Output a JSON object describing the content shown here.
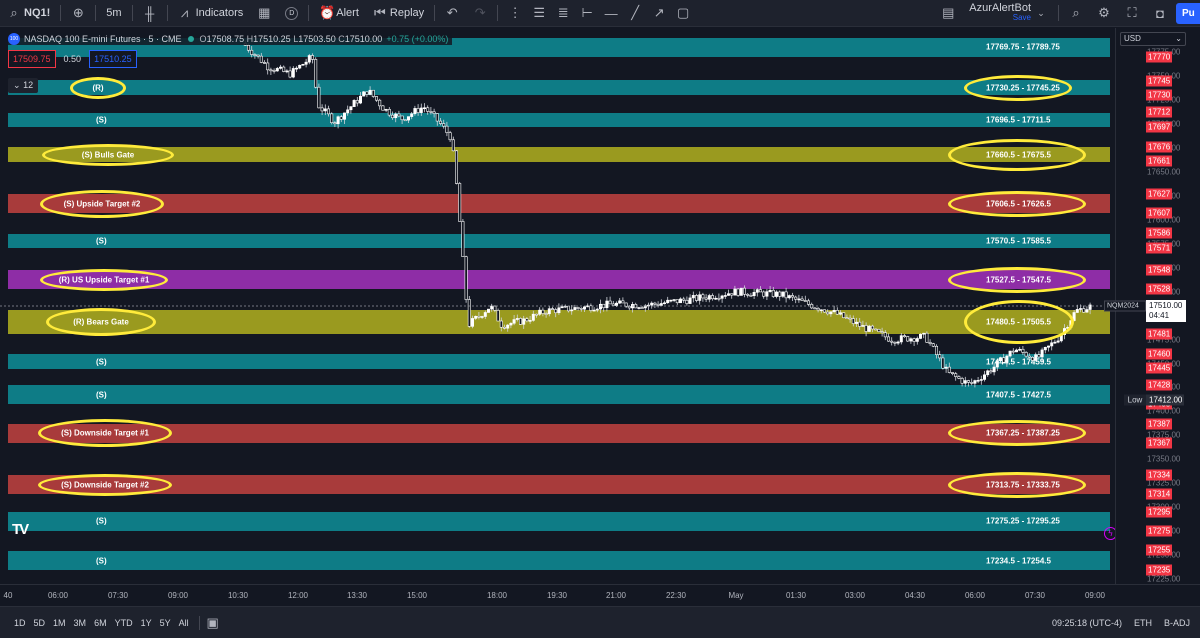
{
  "toolbar": {
    "symbol": "NQ1!",
    "interval": "5m",
    "indicators_label": "Indicators",
    "templates_badge": "D",
    "alert_label": "Alert",
    "replay_label": "Replay",
    "account_name": "AzurAlertBot",
    "save_label": "Save",
    "publish_label": "Pu"
  },
  "legend": {
    "title": "NASDAQ 100 E-mini Futures · 5 · CME",
    "open_label": "O",
    "open": "17508.75",
    "high_label": "H",
    "high": "17510.25",
    "low_label": "L",
    "low": "17503.50",
    "close_label": "C",
    "close": "17510.00",
    "change": "+0.75 (+0.00%)",
    "bid": "17509.75",
    "spread": "0.50",
    "ask": "17510.25",
    "indicator_count": "12"
  },
  "bands": [
    {
      "left": "",
      "right": "17769.75 - 17789.75",
      "color": "#0e7c86",
      "price_lo": 17769.75,
      "price_hi": 17789.75
    },
    {
      "left": "(R)",
      "right": "17730.25 - 17745.25",
      "color": "#0e7c86",
      "price_lo": 17730.25,
      "price_hi": 17745.25
    },
    {
      "left": "(S)",
      "right": "17696.5 - 17711.5",
      "color": "#0e7c86",
      "price_lo": 17696.5,
      "price_hi": 17711.5
    },
    {
      "left": "(S) Bulls Gate",
      "right": "17660.5 - 17675.5",
      "color": "#9a9a1f",
      "price_lo": 17660.5,
      "price_hi": 17675.5
    },
    {
      "left": "(S) Upside Target #2",
      "right": "17606.5 - 17626.5",
      "color": "#a83b3b",
      "price_lo": 17606.5,
      "price_hi": 17626.5
    },
    {
      "left": "(S)",
      "right": "17570.5 - 17585.5",
      "color": "#0e7c86",
      "price_lo": 17570.5,
      "price_hi": 17585.5
    },
    {
      "left": "(R) US Upside Target #1",
      "right": "17527.5 - 17547.5",
      "color": "#8e2da6",
      "price_lo": 17527.5,
      "price_hi": 17547.5
    },
    {
      "left": "(R) Bears Gate",
      "right": "17480.5 - 17505.5",
      "color": "#9a9a1f",
      "price_lo": 17480.5,
      "price_hi": 17505.5
    },
    {
      "left": "(S)",
      "right": "17444.5 - 17459.5",
      "color": "#0e7c86",
      "price_lo": 17444.5,
      "price_hi": 17459.5
    },
    {
      "left": "(S)",
      "right": "17407.5 - 17427.5",
      "color": "#0e7c86",
      "price_lo": 17407.5,
      "price_hi": 17427.5
    },
    {
      "left": "(S) Downside Target #1",
      "right": "17367.25 - 17387.25",
      "color": "#a83b3b",
      "price_lo": 17367.25,
      "price_hi": 17387.25
    },
    {
      "left": "(S) Downside Target #2",
      "right": "17313.75 - 17333.75",
      "color": "#a83b3b",
      "price_lo": 17313.75,
      "price_hi": 17333.75
    },
    {
      "left": "(S)",
      "right": "17275.25 - 17295.25",
      "color": "#0e7c86",
      "price_lo": 17275.25,
      "price_hi": 17295.25
    },
    {
      "left": "(S)",
      "right": "17234.5 - 17254.5",
      "color": "#0e7c86",
      "price_lo": 17234.5,
      "price_hi": 17254.5
    }
  ],
  "price_scale": {
    "currency": "USD",
    "ticks": [
      "17775.00",
      "17750.00",
      "17725.00",
      "17700.00",
      "17675.00",
      "17650.00",
      "17625.00",
      "17600.00",
      "17575.00",
      "17550.00",
      "17525.00",
      "17500.00",
      "17475.00",
      "17450.00",
      "17425.00",
      "17400.00",
      "17375.00",
      "17350.00",
      "17325.00",
      "17300.00",
      "17275.00",
      "17250.00",
      "17225.00"
    ],
    "badges": [
      "17770",
      "17745",
      "17730",
      "17712",
      "17697",
      "17676",
      "17661",
      "17627",
      "17607",
      "17586",
      "17571",
      "17548",
      "17528",
      "17506",
      "17481",
      "17460",
      "17445",
      "17428",
      "17408",
      "17387",
      "17367",
      "17334",
      "17314",
      "17295",
      "17275",
      "17255",
      "17235"
    ],
    "current_price": "17510.00",
    "countdown": "04:41",
    "symbol_tag": "NQM2024",
    "low_label": "Low",
    "low_price": "17412.00"
  },
  "time_axis": [
    "40",
    "06:00",
    "07:30",
    "09:00",
    "10:30",
    "12:00",
    "13:30",
    "15:00",
    "18:00",
    "19:30",
    "21:00",
    "22:30",
    "May",
    "01:30",
    "03:00",
    "04:30",
    "06:00",
    "07:30",
    "09:00"
  ],
  "bottom": {
    "ranges": [
      "1D",
      "5D",
      "1M",
      "3M",
      "6M",
      "YTD",
      "1Y",
      "5Y",
      "All"
    ],
    "time": "09:25:18 (UTC-4)",
    "session": "ETH",
    "adjust": "B-ADJ"
  },
  "chart_data": {
    "type": "candlestick",
    "ylim": [
      17220,
      17800
    ],
    "series": [
      {
        "name": "NQ1!",
        "path": [
          [
            0.22,
            17782
          ],
          [
            0.24,
            17760
          ],
          [
            0.26,
            17752
          ],
          [
            0.28,
            17770
          ],
          [
            0.285,
            17720
          ],
          [
            0.3,
            17702
          ],
          [
            0.33,
            17735
          ],
          [
            0.345,
            17715
          ],
          [
            0.36,
            17705
          ],
          [
            0.38,
            17718
          ],
          [
            0.395,
            17700
          ],
          [
            0.405,
            17685
          ],
          [
            0.41,
            17630
          ],
          [
            0.415,
            17560
          ],
          [
            0.42,
            17490
          ],
          [
            0.44,
            17510
          ],
          [
            0.45,
            17490
          ],
          [
            0.47,
            17495
          ],
          [
            0.49,
            17505
          ],
          [
            0.52,
            17508
          ],
          [
            0.55,
            17512
          ],
          [
            0.58,
            17511
          ],
          [
            0.62,
            17517
          ],
          [
            0.66,
            17525
          ],
          [
            0.7,
            17522
          ],
          [
            0.73,
            17510
          ],
          [
            0.75,
            17502
          ],
          [
            0.77,
            17490
          ],
          [
            0.8,
            17475
          ],
          [
            0.83,
            17478
          ],
          [
            0.85,
            17440
          ],
          [
            0.87,
            17428
          ],
          [
            0.89,
            17445
          ],
          [
            0.91,
            17465
          ],
          [
            0.93,
            17455
          ],
          [
            0.95,
            17478
          ],
          [
            0.965,
            17505
          ],
          [
            0.98,
            17510
          ]
        ]
      }
    ]
  },
  "colors": {
    "background": "#131722",
    "up": "#ffffff",
    "down": "#ffffff",
    "highlight_ellipse": "#ffeb3b",
    "badge_red": "#f23645"
  }
}
